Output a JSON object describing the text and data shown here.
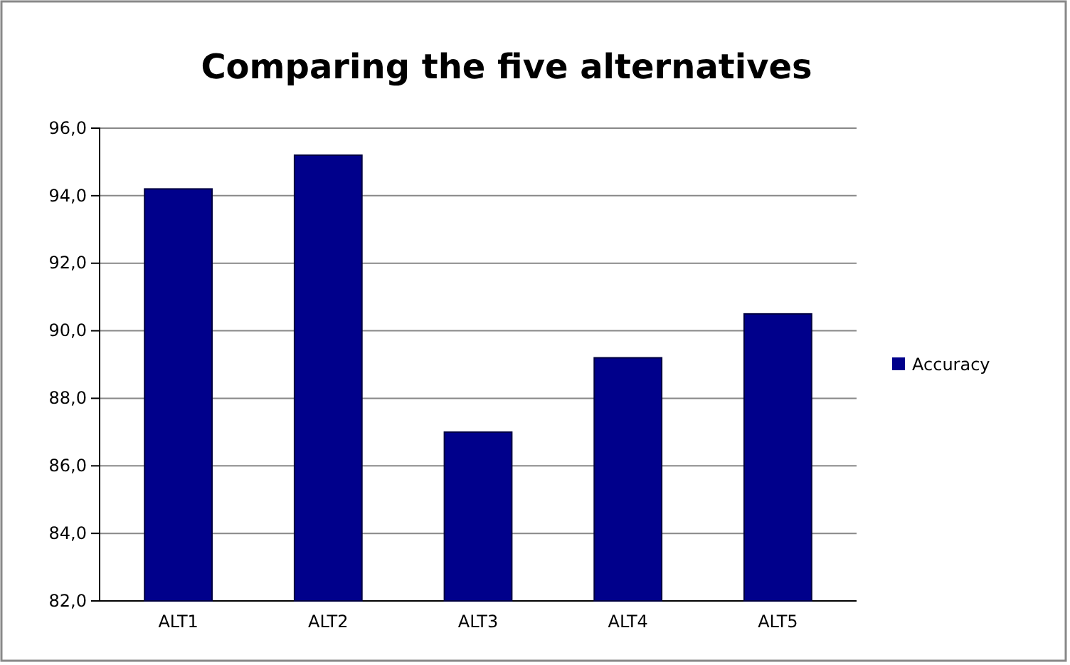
{
  "chart_data": {
    "type": "bar",
    "title": "Comparing the five alternatives",
    "categories": [
      "ALT1",
      "ALT2",
      "ALT3",
      "ALT4",
      "ALT5"
    ],
    "series": [
      {
        "name": "Accuracy",
        "color": "#00008b",
        "values": [
          94.2,
          95.2,
          87.0,
          89.2,
          90.5
        ]
      }
    ],
    "ylim": [
      82,
      96
    ],
    "yticks": [
      {
        "value": 82,
        "label": "82,0"
      },
      {
        "value": 84,
        "label": "84,0"
      },
      {
        "value": 86,
        "label": "86,0"
      },
      {
        "value": 88,
        "label": "88,0"
      },
      {
        "value": 90,
        "label": "90,0"
      },
      {
        "value": 92,
        "label": "92,0"
      },
      {
        "value": 94,
        "label": "94,0"
      },
      {
        "value": 96,
        "label": "96,0"
      }
    ],
    "grid": "y",
    "legend": "right"
  }
}
